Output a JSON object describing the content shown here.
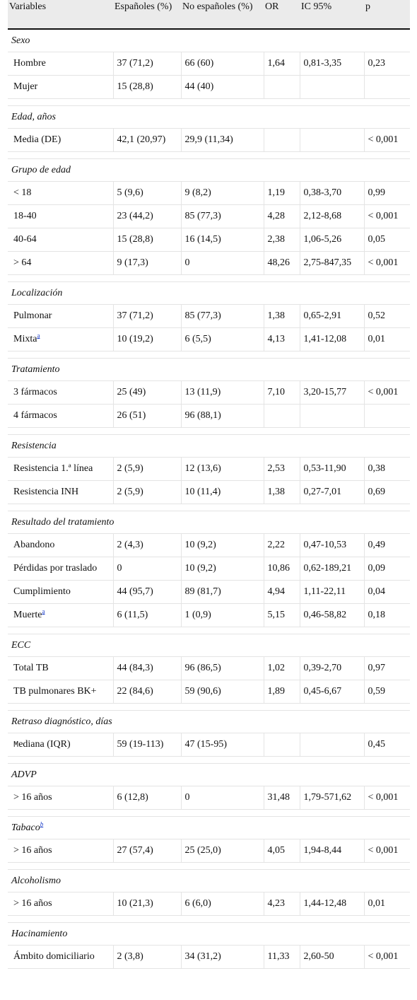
{
  "headers": [
    "Variables",
    "Españoles (%)",
    "No españoles (%)",
    "OR",
    "IC 95%",
    "p"
  ],
  "sections": [
    {
      "title": "Sexo",
      "rows": [
        [
          "Hombre",
          "37 (71,2)",
          "66 (60)",
          "1,64",
          "0,81-3,35",
          "0,23"
        ],
        [
          "Mujer",
          "15 (28,8)",
          "44 (40)",
          "",
          "",
          ""
        ]
      ]
    },
    {
      "title": "Edad, años",
      "rows": [
        [
          "Media (DE)",
          "42,1 (20,97)",
          "29,9 (11,34)",
          "",
          "",
          "< 0,001"
        ]
      ]
    },
    {
      "title": "Grupo de edad",
      "rows": [
        [
          "< 18",
          "5 (9,6)",
          "9 (8,2)",
          "1,19",
          "0,38-3,70",
          "0,99"
        ],
        [
          "18-40",
          "23 (44,2)",
          "85 (77,3)",
          "4,28",
          "2,12-8,68",
          "< 0,001"
        ],
        [
          "40-64",
          "15 (28,8)",
          "16 (14,5)",
          "2,38",
          "1,06-5,26",
          "0,05"
        ],
        [
          "> 64",
          "9 (17,3)",
          "0",
          "48,26",
          "2,75-847,35",
          "< 0,001"
        ]
      ]
    },
    {
      "title": "Localización",
      "rows": [
        [
          "Pulmonar",
          "37 (71,2)",
          "85 (77,3)",
          "1,38",
          "0,65-2,91",
          "0,52"
        ],
        [
          "Mixta",
          "10 (19,2)",
          "6 (5,5)",
          "4,13",
          "1,41-12,08",
          "0,01"
        ]
      ]
    },
    {
      "title": "Tratamiento",
      "rows": [
        [
          "3 fármacos",
          "25 (49)",
          "13 (11,9)",
          "7,10",
          "3,20-15,77",
          "< 0,001"
        ],
        [
          "4 fármacos",
          "26 (51)",
          "96 (88,1)",
          "",
          "",
          ""
        ]
      ]
    },
    {
      "title": "Resistencia",
      "rows": [
        [
          "Resistencia 1.ª línea",
          "2 (5,9)",
          "12 (13,6)",
          "2,53",
          "0,53-11,90",
          "0,38"
        ],
        [
          "Resistencia INH",
          "2 (5,9)",
          "10 (11,4)",
          "1,38",
          "0,27-7,01",
          "0,69"
        ]
      ]
    },
    {
      "title": "Resultado del tratamiento",
      "rows": [
        [
          "Abandono",
          "2 (4,3)",
          "10 (9,2)",
          "2,22",
          "0,47-10,53",
          "0,49"
        ],
        [
          "Pérdidas por traslado",
          "0",
          "10 (9,2)",
          "10,86",
          "0,62-189,21",
          "0,09"
        ],
        [
          "Cumplimiento",
          "44 (95,7)",
          "89 (81,7)",
          "4,94",
          "1,11-22,11",
          "0,04"
        ],
        [
          "Muerte",
          "6 (11,5)",
          "1 (0,9)",
          "5,15",
          "0,46-58,82",
          "0,18"
        ]
      ]
    },
    {
      "title": "ECC",
      "rows": [
        [
          "Total TB",
          "44 (84,3)",
          "96 (86,5)",
          "1,02",
          "0,39-2,70",
          "0,97"
        ],
        [
          "TB pulmonares BK+",
          "22 (84,6)",
          "59 (90,6)",
          "1,89",
          "0,45-6,67",
          "0,59"
        ]
      ]
    },
    {
      "title": "Retraso diagnóstico, días",
      "rows": [
        [
          "Mediana (IQR)",
          "59 (19-113)",
          "47 (15-95)",
          "",
          "",
          "0,45"
        ]
      ]
    },
    {
      "title": "ADVP",
      "rows": [
        [
          "> 16 años",
          "6 (12,8)",
          "0",
          "31,48",
          "1,79-571,62",
          "< 0,001"
        ]
      ]
    },
    {
      "title": "Tabaco",
      "rows": [
        [
          "> 16 años",
          "27 (57,4)",
          "25 (25,0)",
          "4,05",
          "1,94-8,44",
          "< 0,001"
        ]
      ]
    },
    {
      "title": "Alcoholismo",
      "rows": [
        [
          "> 16 años",
          "10 (21,3)",
          "6 (6,0)",
          "4,23",
          "1,44-12,48",
          "0,01"
        ]
      ]
    },
    {
      "title": "Hacinamiento",
      "rows": [
        [
          "Ámbito domiciliario",
          "2 (3,8)",
          "34 (31,2)",
          "11,33",
          "2,60-50",
          "< 0,001"
        ]
      ]
    }
  ],
  "footnote_marks": {
    "a": "a",
    "b": "b"
  },
  "colors": {
    "header_bg": "#ebebeb",
    "link": "#1a3cc8"
  }
}
